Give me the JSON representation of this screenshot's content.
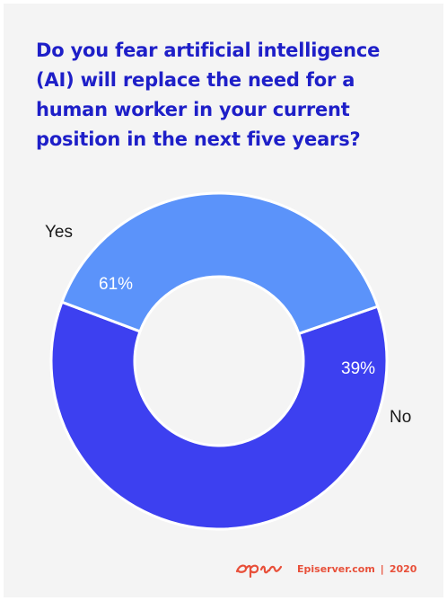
{
  "title": "Do you fear artificial intelligence (AI) will replace the need for a human worker in your current position in the next five years?",
  "chart_data": {
    "type": "pie",
    "donut": true,
    "slices": [
      {
        "label": "Yes",
        "value": 61,
        "value_label": "61%",
        "color": "#3d40f0"
      },
      {
        "label": "No",
        "value": 39,
        "value_label": "39%",
        "color": "#5b93fa"
      }
    ]
  },
  "footer": {
    "brand_logo": "epi",
    "site": "Episerver.com",
    "separator": "|",
    "year": "2020",
    "color": "#e8503a"
  }
}
